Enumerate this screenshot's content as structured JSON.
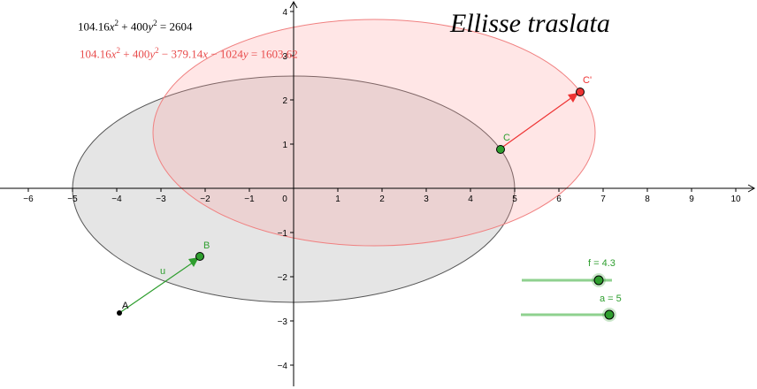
{
  "title": "Ellisse traslata",
  "equations": {
    "original": {
      "a": "104.16",
      "b": "400",
      "rhs": "2604"
    },
    "translated": {
      "a": "104.16",
      "b": "400",
      "c": "379.14",
      "d": "1024",
      "rhs": "1603.62"
    }
  },
  "axes": {
    "x_ticks": [
      "−6",
      "−5",
      "−4",
      "−3",
      "−2",
      "−1",
      "0",
      "1",
      "2",
      "3",
      "4",
      "5",
      "6",
      "7",
      "8",
      "9",
      "10"
    ],
    "y_ticks": [
      "4",
      "3",
      "2",
      "1",
      "−1",
      "−2",
      "−3",
      "−4"
    ]
  },
  "points": {
    "A": {
      "label": "A"
    },
    "B": {
      "label": "B"
    },
    "C": {
      "label": "C"
    },
    "C_prime": {
      "label": "C'"
    }
  },
  "vector": {
    "label": "u"
  },
  "sliders": {
    "f": {
      "label": "f = 4.3",
      "value": 4.3
    },
    "a": {
      "label": "a = 5",
      "value": 5
    }
  },
  "colors": {
    "original_ellipse_fill": "#e4e4e4",
    "translated_ellipse": "#f08080",
    "translated_text": "#e84b4b",
    "green": "#2e9e2e",
    "slider_track": "#8fd18f"
  }
}
